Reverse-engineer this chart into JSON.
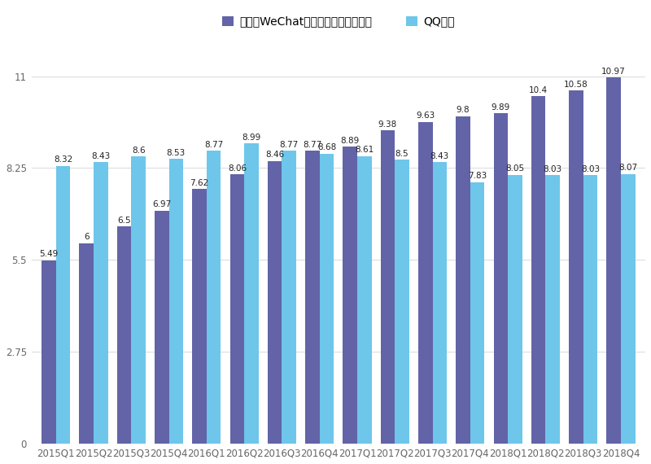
{
  "categories": [
    "2015Q1",
    "2015Q2",
    "2015Q3",
    "2015Q4",
    "2016Q1",
    "2016Q2",
    "2016Q3",
    "2016Q4",
    "2017Q1",
    "2017Q2",
    "2017Q3",
    "2017Q4",
    "2018Q1",
    "2018Q2",
    "2018Q3",
    "2018Q4"
  ],
  "wechat": [
    5.49,
    6.0,
    6.5,
    6.97,
    7.62,
    8.06,
    8.46,
    8.77,
    8.89,
    9.38,
    9.63,
    9.8,
    9.89,
    10.4,
    10.58,
    10.97
  ],
  "qq": [
    8.32,
    8.43,
    8.6,
    8.53,
    8.77,
    8.99,
    8.77,
    8.68,
    8.61,
    8.5,
    8.43,
    7.83,
    8.05,
    8.03,
    8.03,
    8.07
  ],
  "wechat_label": [
    5.49,
    6,
    6.5,
    6.97,
    7.62,
    8.06,
    8.46,
    8.77,
    8.89,
    9.38,
    9.63,
    9.8,
    9.89,
    10.4,
    10.58,
    10.97
  ],
  "qq_label": [
    8.32,
    8.43,
    8.6,
    8.53,
    8.77,
    8.99,
    8.77,
    8.68,
    8.61,
    8.5,
    8.43,
    7.83,
    8.05,
    8.03,
    8.03,
    8.07
  ],
  "wechat_color": "#6264A7",
  "qq_color": "#6EC6EA",
  "background_color": "#FFFFFF",
  "legend_wechat": "微信及WeChat合并月活用户（亿人）",
  "legend_qq": "QQ月活",
  "yticks": [
    0,
    2.75,
    5.5,
    8.25,
    11
  ],
  "ytick_labels": [
    "0",
    "2.75",
    "5.5",
    "8.25",
    "11"
  ],
  "ylim": [
    0,
    11.8
  ],
  "grid_color": "#DDDDDD",
  "bar_width": 0.38,
  "label_fontsize": 7.5,
  "tick_fontsize": 8.5,
  "legend_fontsize": 10
}
